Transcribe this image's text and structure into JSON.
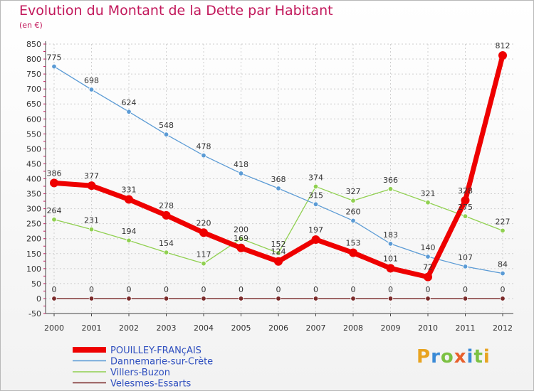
{
  "title": "Evolution du Montant de la Dette par Habitant",
  "subtitle": "(en €)",
  "logo": {
    "letters": [
      "P",
      "r",
      "o",
      "x",
      "i",
      "t",
      "i"
    ],
    "colors": [
      "#e8a320",
      "#3a8ad6",
      "#7cc142",
      "#e8602c",
      "#3a8ad6",
      "#7cc142",
      "#e8a320"
    ]
  },
  "chart_data": {
    "type": "line",
    "title": "Evolution du Montant de la Dette par Habitant",
    "ylabel": "(en €)",
    "xlabel": "",
    "categories": [
      "2000",
      "2001",
      "2002",
      "2003",
      "2004",
      "2005",
      "2006",
      "2007",
      "2008",
      "2009",
      "2010",
      "2011",
      "2012"
    ],
    "ylim": [
      -50,
      850
    ],
    "yticks": [
      -50,
      0,
      50,
      100,
      150,
      200,
      250,
      300,
      350,
      400,
      450,
      500,
      550,
      600,
      650,
      700,
      750,
      800,
      850
    ],
    "grid": true,
    "legend_position": "bottom-left",
    "series": [
      {
        "name": "Velesmes-Essarts",
        "color": "#7a2a2a",
        "values": [
          0,
          0,
          0,
          0,
          0,
          0,
          0,
          0,
          0,
          0,
          0,
          0,
          0
        ]
      },
      {
        "name": "Villers-Buzon",
        "color": "#90d050",
        "values": [
          264,
          231,
          194,
          154,
          117,
          200,
          152,
          374,
          327,
          366,
          321,
          275,
          227
        ]
      },
      {
        "name": "Dannemarie-sur-Crète",
        "color": "#5b9bd5",
        "values": [
          775,
          698,
          624,
          548,
          478,
          418,
          368,
          315,
          260,
          183,
          140,
          107,
          84
        ]
      },
      {
        "name": "POUILLEY-FRANçAIS",
        "color": "#ee0000",
        "values": [
          386,
          377,
          331,
          278,
          220,
          169,
          124,
          197,
          153,
          101,
          72,
          328,
          812
        ]
      }
    ],
    "legend": [
      "POUILLEY-FRANçAIS",
      "Dannemarie-sur-Crète",
      "Villers-Buzon",
      "Velesmes-Essarts"
    ]
  }
}
